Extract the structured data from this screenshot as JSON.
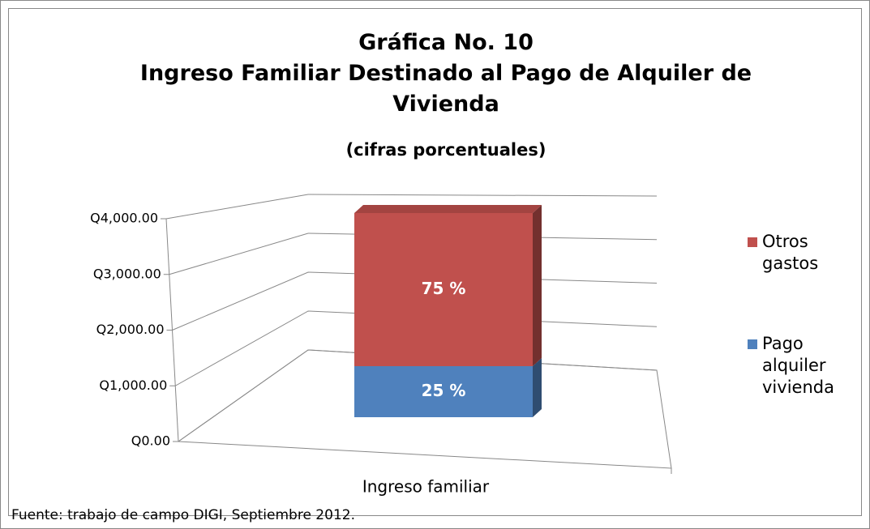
{
  "chart_data": {
    "type": "stacked_bar_3d",
    "title": "Gráfica No. 10",
    "subtitle": "Ingreso Familiar Destinado al Pago de Alquiler de Vivienda",
    "unit_note": "(cifras porcentuales)",
    "source": "Fuente: trabajo de campo DIGI, Septiembre 2012.",
    "categories": [
      "Ingreso familiar"
    ],
    "series": [
      {
        "name": "Pago alquiler vivienda",
        "color": "#4f81bd",
        "values": [
          1000
        ],
        "share": 25,
        "share_label": "25 %"
      },
      {
        "name": "Otros gastos",
        "color": "#c0504d",
        "values": [
          3000
        ],
        "share": 75,
        "share_label": "75 %"
      }
    ],
    "ylim": [
      0,
      4000
    ],
    "yticks": [
      {
        "value": 0,
        "label": "Q0.00"
      },
      {
        "value": 1000,
        "label": "Q1,000.00"
      },
      {
        "value": 2000,
        "label": "Q2,000.00"
      },
      {
        "value": 3000,
        "label": "Q3,000.00"
      },
      {
        "value": 4000,
        "label": "Q4,000.00"
      }
    ],
    "grid": true,
    "legend": "right"
  }
}
